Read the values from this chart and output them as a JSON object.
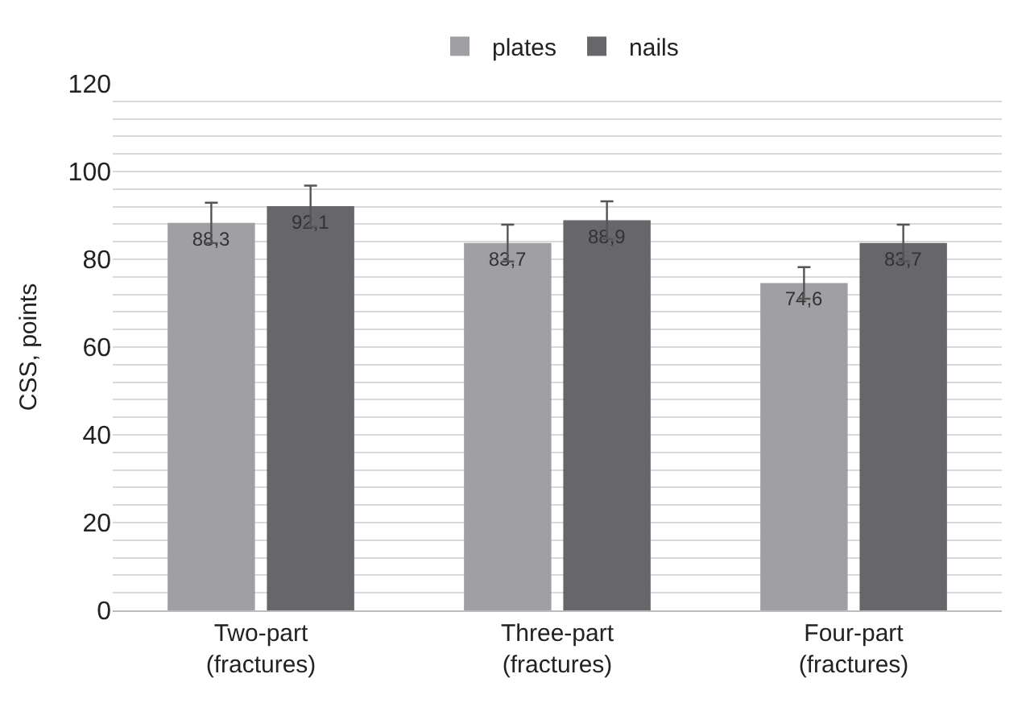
{
  "chart_data": {
    "type": "bar",
    "ylabel": "CSS, points",
    "categories": [
      "Two-part\n(fractures)",
      "Three-part\n(fractures)",
      "Four-part\n(fractures)"
    ],
    "series": [
      {
        "name": "plates",
        "color": "#a0a0a4",
        "values": [
          88.3,
          83.7,
          74.6
        ],
        "errors": [
          4.6,
          4.2,
          3.6
        ],
        "value_labels": [
          "88,3",
          "83,7",
          "74,6"
        ]
      },
      {
        "name": "nails",
        "color": "#67676b",
        "values": [
          92.1,
          88.9,
          83.7
        ],
        "errors": [
          4.7,
          4.3,
          4.2
        ],
        "value_labels": [
          "92,1",
          "88,9",
          "83,7"
        ]
      }
    ],
    "ylim": [
      0,
      120
    ],
    "yticks": [
      0,
      {
        "value": 4,
        "label": null
      },
      {
        "value": 8,
        "label": null
      },
      {
        "value": 12,
        "label": null
      },
      {
        "value": 16,
        "label": null
      },
      20,
      {
        "value": 24,
        "label": null
      },
      {
        "value": 28,
        "label": null
      },
      {
        "value": 32,
        "label": null
      },
      {
        "value": 36,
        "label": null
      },
      40,
      {
        "value": 44,
        "label": null
      },
      {
        "value": 48,
        "label": null
      },
      {
        "value": 52,
        "label": null
      },
      {
        "value": 56,
        "label": null
      },
      60,
      {
        "value": 64,
        "label": null
      },
      {
        "value": 68,
        "label": null
      },
      {
        "value": 72,
        "label": null
      },
      {
        "value": 76,
        "label": null
      },
      80,
      {
        "value": 84,
        "label": null
      },
      {
        "value": 88,
        "label": null
      },
      {
        "value": 92,
        "label": null
      },
      {
        "value": 96,
        "label": null
      },
      100,
      {
        "value": 104,
        "label": null
      },
      {
        "value": 108,
        "label": null
      },
      {
        "value": 112,
        "label": null
      },
      {
        "value": 116,
        "label": null
      },
      120
    ],
    "grid": "y",
    "legend": "top"
  }
}
